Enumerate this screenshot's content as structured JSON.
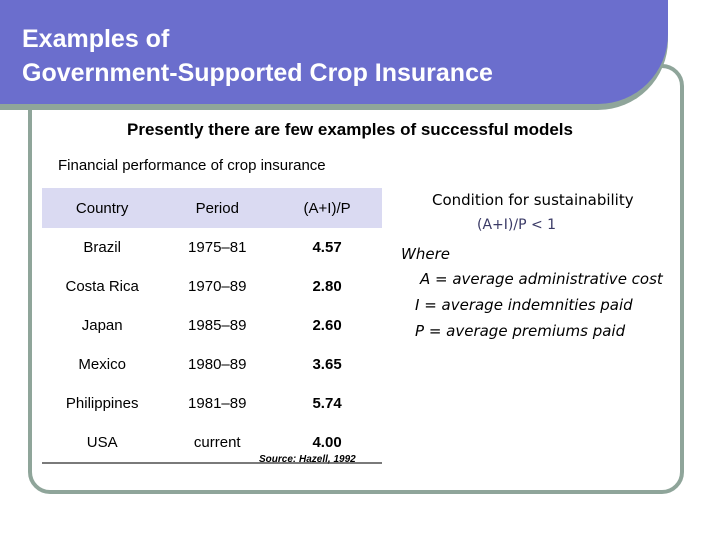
{
  "slide": {
    "title_line1": "Examples of",
    "title_line2": "Government-Supported Crop Insurance",
    "subtitle": "Presently there are few examples of successful models",
    "table_caption": "Financial performance of crop insurance",
    "table": {
      "headers": [
        "Country",
        "Period",
        "(A+I)/P"
      ],
      "rows": [
        [
          "Brazil",
          "1975–81",
          "4.57"
        ],
        [
          "Costa Rica",
          "1970–89",
          "2.80"
        ],
        [
          "Japan",
          "1985–89",
          "2.60"
        ],
        [
          "Mexico",
          "1980–89",
          "3.65"
        ],
        [
          "Philippines",
          "1981–89",
          "5.74"
        ],
        [
          "USA",
          "current",
          "4.00"
        ]
      ]
    },
    "source": "Source: Hazell, 1992",
    "condition": {
      "title": "Condition for sustainability",
      "formula": "(A+I)/P < 1",
      "where": "Where",
      "definitions": [
        "A = average administrative cost",
        "I  = average indemnities paid",
        "P = average premiums paid"
      ]
    },
    "colors": {
      "title_bar": "#6b6ecd",
      "frame": "#8fa59a",
      "table_header": "#dadaf2"
    }
  }
}
